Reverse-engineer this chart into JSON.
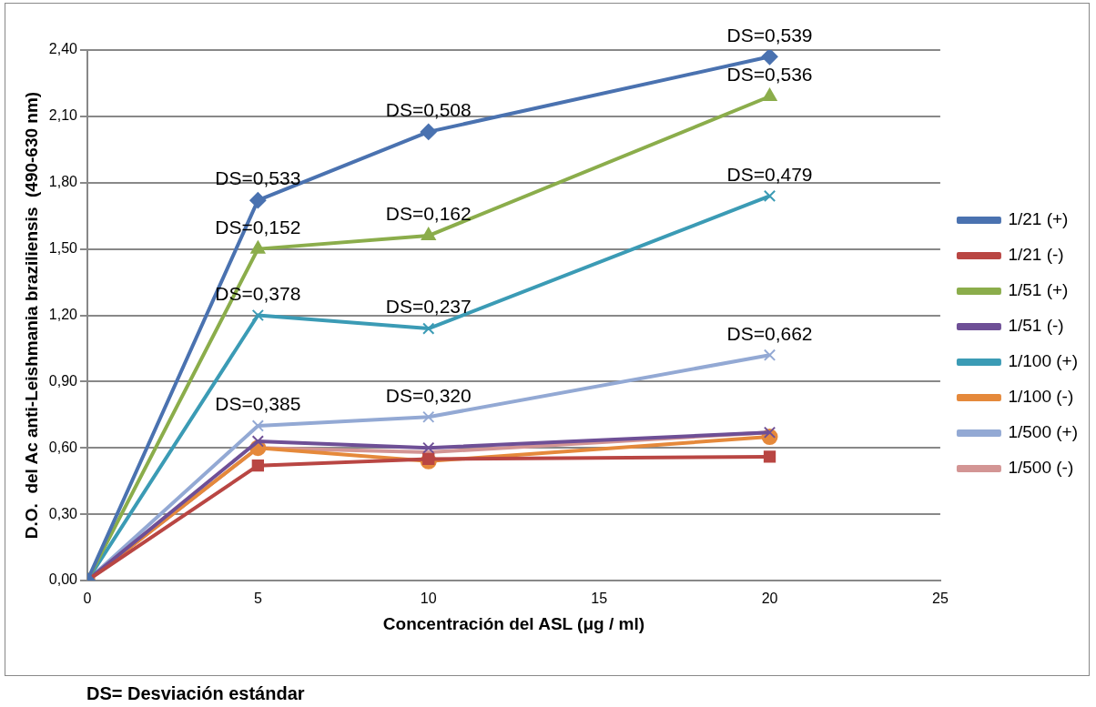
{
  "chart_data": {
    "type": "line",
    "xlabel": "Concentración del ASL (μg / ml)",
    "ylabel": "D.O.  del Ac anti-Leishmania braziliensis  (490-630 nm)",
    "xlim": [
      0,
      25
    ],
    "xticks": [
      0,
      5,
      10,
      15,
      20,
      25
    ],
    "ylim": [
      0,
      2.4
    ],
    "yticks": [
      {
        "value": 0,
        "label": "0,00"
      },
      {
        "value": 0.3,
        "label": "0,30"
      },
      {
        "value": 0.6,
        "label": "0,60"
      },
      {
        "value": 0.9,
        "label": "0,90"
      },
      {
        "value": 1.2,
        "label": "1,20"
      },
      {
        "value": 1.5,
        "label": "1,50"
      },
      {
        "value": 1.8,
        "label": "1,80"
      },
      {
        "value": 2.1,
        "label": "2,10"
      },
      {
        "value": 2.4,
        "label": "2,40"
      }
    ],
    "x": [
      0,
      5,
      10,
      20
    ],
    "grid": "y",
    "legend": "right",
    "series": [
      {
        "name": "1/21 (+)",
        "color": "#4a72b0",
        "marker": "diamond",
        "values": [
          0,
          1.72,
          2.03,
          2.37
        ]
      },
      {
        "name": "1/21 (-)",
        "color": "#b94643",
        "marker": "square",
        "values": [
          0,
          0.52,
          0.55,
          0.56
        ]
      },
      {
        "name": "1/51 (+)",
        "color": "#8bad4b",
        "marker": "triangle",
        "values": [
          0,
          1.5,
          1.56,
          2.19
        ]
      },
      {
        "name": "1/51 (-)",
        "color": "#6e4f96",
        "marker": "cross",
        "values": [
          0,
          0.63,
          0.6,
          0.67
        ]
      },
      {
        "name": "1/100 (+)",
        "color": "#3b9bb5",
        "marker": "cross",
        "values": [
          0,
          1.2,
          1.14,
          1.74
        ]
      },
      {
        "name": "1/100 (-)",
        "color": "#e5893b",
        "marker": "circle",
        "values": [
          0,
          0.6,
          0.54,
          0.65
        ]
      },
      {
        "name": "1/500 (+)",
        "color": "#93a9d4",
        "marker": "cross",
        "values": [
          0,
          0.7,
          0.74,
          1.02
        ]
      },
      {
        "name": "1/500 (-)",
        "color": "#d39594",
        "marker": "none",
        "values": [
          0,
          0.6,
          0.58,
          0.67
        ]
      }
    ],
    "annotations": [
      {
        "text": "DS=0,533",
        "x": 5,
        "y": 1.72
      },
      {
        "text": "DS=0,508",
        "x": 10,
        "y": 2.03
      },
      {
        "text": "DS=0,539",
        "x": 20,
        "y": 2.37
      },
      {
        "text": "DS=0,152",
        "x": 5,
        "y": 1.5
      },
      {
        "text": "DS=0,162",
        "x": 10,
        "y": 1.56
      },
      {
        "text": "DS=0,536",
        "x": 20,
        "y": 2.19
      },
      {
        "text": "DS=0,378",
        "x": 5,
        "y": 1.2
      },
      {
        "text": "DS=0,237",
        "x": 10,
        "y": 1.14
      },
      {
        "text": "DS=0,479",
        "x": 20,
        "y": 1.74
      },
      {
        "text": "DS=0,385",
        "x": 5,
        "y": 0.7
      },
      {
        "text": "DS=0,320",
        "x": 10,
        "y": 0.74
      },
      {
        "text": "DS=0,662",
        "x": 20,
        "y": 1.02
      },
      "DS= Desviación estándar"
    ]
  }
}
